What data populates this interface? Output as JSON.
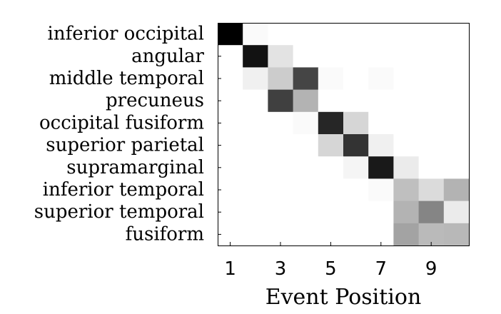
{
  "chart_data": {
    "type": "heatmap",
    "title": "",
    "xlabel": "Event Position",
    "ylabel": "",
    "rows": [
      "inferior occipital",
      "angular",
      "middle temporal",
      "precuneus",
      "occipital fusiform",
      "superior parietal",
      "supramarginal",
      "inferior temporal",
      "superior temporal",
      "fusiform"
    ],
    "columns": [
      1,
      2,
      3,
      4,
      5,
      6,
      7,
      8,
      9,
      10
    ],
    "x_tick_labels": [
      "1",
      "3",
      "5",
      "7",
      "9"
    ],
    "x_tick_positions": [
      1,
      3,
      5,
      7,
      9
    ],
    "colormap": "gray_reversed",
    "value_range": [
      0,
      1
    ],
    "values": [
      [
        1.0,
        0.02,
        0.0,
        0.0,
        0.0,
        0.0,
        0.0,
        0.0,
        0.0,
        0.0
      ],
      [
        0.0,
        0.93,
        0.11,
        0.0,
        0.0,
        0.0,
        0.0,
        0.0,
        0.0,
        0.0
      ],
      [
        0.0,
        0.06,
        0.2,
        0.73,
        0.02,
        0.0,
        0.02,
        0.0,
        0.0,
        0.0
      ],
      [
        0.0,
        0.0,
        0.75,
        0.3,
        0.0,
        0.0,
        0.0,
        0.0,
        0.0,
        0.0
      ],
      [
        0.0,
        0.0,
        0.0,
        0.02,
        0.85,
        0.16,
        0.0,
        0.0,
        0.0,
        0.0
      ],
      [
        0.0,
        0.0,
        0.0,
        0.0,
        0.16,
        0.8,
        0.06,
        0.0,
        0.0,
        0.0
      ],
      [
        0.0,
        0.0,
        0.0,
        0.0,
        0.0,
        0.04,
        0.9,
        0.08,
        0.0,
        0.0
      ],
      [
        0.0,
        0.0,
        0.0,
        0.0,
        0.0,
        0.0,
        0.02,
        0.25,
        0.14,
        0.3
      ],
      [
        0.0,
        0.0,
        0.0,
        0.0,
        0.0,
        0.0,
        0.0,
        0.3,
        0.48,
        0.08
      ],
      [
        0.0,
        0.0,
        0.0,
        0.0,
        0.0,
        0.0,
        0.0,
        0.36,
        0.27,
        0.28
      ]
    ]
  }
}
